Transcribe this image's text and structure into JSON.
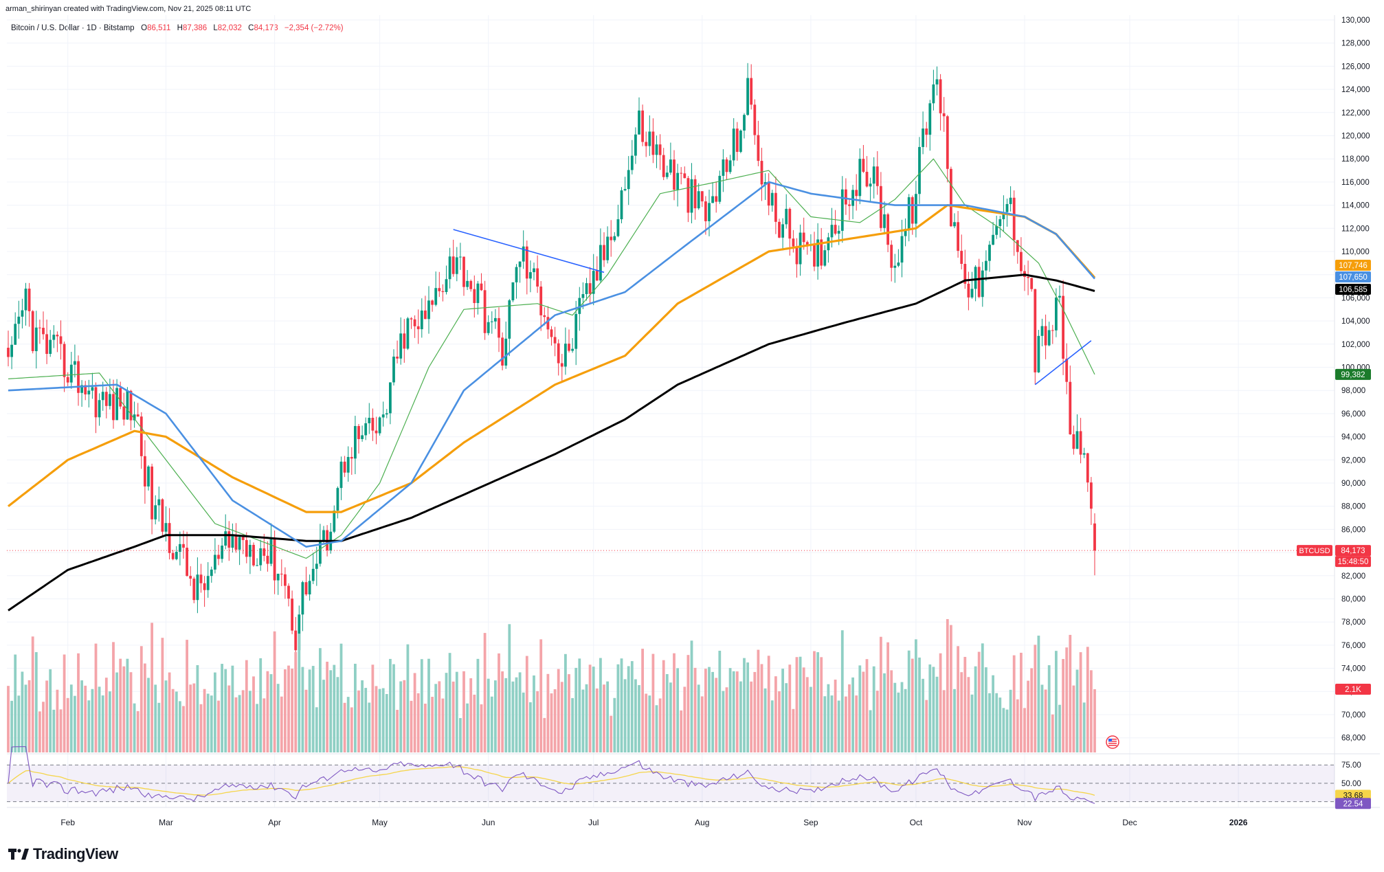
{
  "header": {
    "credit": "arman_shirinyan created with TradingView.com, Nov 21, 2025 08:11 UTC",
    "symbol_title": "Bitcoin / U.S. Dollar · 1D · Bitstamp",
    "ohlc": {
      "o_label": "O",
      "o": "86,511",
      "h_label": "H",
      "h": "87,386",
      "l_label": "L",
      "l": "82,032",
      "c_label": "C",
      "c": "84,173",
      "change": "−2,354 (−2.72%)"
    }
  },
  "brand": {
    "name": "TradingView"
  },
  "colors": {
    "up": "#089981",
    "down": "#f23645",
    "vol_up": "#8fcfc4",
    "vol_down": "#f4a4a9",
    "ema_blue": "#4a90e2",
    "ema_orange": "#f59e0b",
    "ema_black": "#000000",
    "ema_green": "#4caf50",
    "trendline": "#2962ff",
    "rsi": "#7e57c2",
    "rsi_ma": "#f5d54a"
  },
  "chart_data": {
    "type": "candlestick",
    "symbol": "BTCUSD",
    "x_tick_labels": [
      "Feb",
      "Mar",
      "Apr",
      "May",
      "Jun",
      "Jul",
      "Aug",
      "Sep",
      "Oct",
      "Nov",
      "Dec",
      "2026"
    ],
    "y_tick_labels": [
      "130,000",
      "128,000",
      "126,000",
      "124,000",
      "122,000",
      "120,000",
      "118,000",
      "116,000",
      "114,000",
      "112,000",
      "110,000",
      "108,000",
      "106,000",
      "104,000",
      "102,000",
      "100,000",
      "98,000",
      "96,000",
      "94,000",
      "92,000",
      "90,000",
      "88,000",
      "86,000",
      "84,000",
      "82,000",
      "80,000",
      "78,000",
      "76,000",
      "74,000",
      "72,000",
      "70,000",
      "68,000"
    ],
    "y_range": [
      67000,
      130500
    ],
    "price_anchors": [
      [
        "2025-01-15",
        99500
      ],
      [
        "2025-01-20",
        106000
      ],
      [
        "2025-01-22",
        103000
      ],
      [
        "2025-02-01",
        100000
      ],
      [
        "2025-02-10",
        97000
      ],
      [
        "2025-02-20",
        96500
      ],
      [
        "2025-02-25",
        88000
      ],
      [
        "2025-03-03",
        85000
      ],
      [
        "2025-03-10",
        80500
      ],
      [
        "2025-03-20",
        85000
      ],
      [
        "2025-03-28",
        84500
      ],
      [
        "2025-04-03",
        82500
      ],
      [
        "2025-04-07",
        77000
      ],
      [
        "2025-04-09",
        80500
      ],
      [
        "2025-04-15",
        84500
      ],
      [
        "2025-04-22",
        93500
      ],
      [
        "2025-05-01",
        94500
      ],
      [
        "2025-05-08",
        103000
      ],
      [
        "2025-05-14",
        104000
      ],
      [
        "2025-05-21",
        109500
      ],
      [
        "2025-05-25",
        108500
      ],
      [
        "2025-06-05",
        101500
      ],
      [
        "2025-06-10",
        110000
      ],
      [
        "2025-06-18",
        104500
      ],
      [
        "2025-06-22",
        100000
      ],
      [
        "2025-06-30",
        107000
      ],
      [
        "2025-07-03",
        109000
      ],
      [
        "2025-07-10",
        116000
      ],
      [
        "2025-07-14",
        121000
      ],
      [
        "2025-07-20",
        118000
      ],
      [
        "2025-08-02",
        113000
      ],
      [
        "2025-08-10",
        119000
      ],
      [
        "2025-08-14",
        123500
      ],
      [
        "2025-08-20",
        114000
      ],
      [
        "2025-09-01",
        109000
      ],
      [
        "2025-09-05",
        111000
      ],
      [
        "2025-09-12",
        115500
      ],
      [
        "2025-09-18",
        117000
      ],
      [
        "2025-09-25",
        109000
      ],
      [
        "2025-09-30",
        114000
      ],
      [
        "2025-10-06",
        124500
      ],
      [
        "2025-10-09",
        122500
      ],
      [
        "2025-10-11",
        113000
      ],
      [
        "2025-10-17",
        106500
      ],
      [
        "2025-10-21",
        108500
      ],
      [
        "2025-10-27",
        114500
      ],
      [
        "2025-11-03",
        106500
      ],
      [
        "2025-11-04",
        101000
      ],
      [
        "2025-11-07",
        103000
      ],
      [
        "2025-11-11",
        105000
      ],
      [
        "2025-11-14",
        94500
      ],
      [
        "2025-11-17",
        92000
      ],
      [
        "2025-11-19",
        91500
      ],
      [
        "2025-11-20",
        86500
      ],
      [
        "2025-11-21",
        84173
      ]
    ],
    "last_candle": {
      "date": "2025-11-21",
      "open": 86511,
      "high": 87386,
      "low": 82032,
      "close": 84173
    },
    "moving_averages": {
      "ema_blue": {
        "last": 107650,
        "label": "107,650",
        "anchors": [
          [
            "2025-01-15",
            98000
          ],
          [
            "2025-02-15",
            98500
          ],
          [
            "2025-03-01",
            96000
          ],
          [
            "2025-03-20",
            88500
          ],
          [
            "2025-04-10",
            84500
          ],
          [
            "2025-04-20",
            85000
          ],
          [
            "2025-05-10",
            90000
          ],
          [
            "2025-05-25",
            98000
          ],
          [
            "2025-06-20",
            104500
          ],
          [
            "2025-07-10",
            106500
          ],
          [
            "2025-07-25",
            110000
          ],
          [
            "2025-08-20",
            116000
          ],
          [
            "2025-09-01",
            115000
          ],
          [
            "2025-09-25",
            114000
          ],
          [
            "2025-10-15",
            114000
          ],
          [
            "2025-11-01",
            113000
          ],
          [
            "2025-11-10",
            111500
          ],
          [
            "2025-11-21",
            107650
          ]
        ]
      },
      "ema_orange": {
        "last": 107746,
        "label": "107,746",
        "anchors": [
          [
            "2025-01-15",
            88000
          ],
          [
            "2025-02-01",
            92000
          ],
          [
            "2025-02-20",
            94500
          ],
          [
            "2025-03-01",
            94000
          ],
          [
            "2025-03-20",
            90500
          ],
          [
            "2025-04-10",
            87500
          ],
          [
            "2025-04-20",
            87500
          ],
          [
            "2025-05-10",
            90000
          ],
          [
            "2025-05-25",
            93500
          ],
          [
            "2025-06-20",
            98500
          ],
          [
            "2025-07-10",
            101000
          ],
          [
            "2025-07-25",
            105500
          ],
          [
            "2025-08-20",
            110000
          ],
          [
            "2025-09-10",
            111000
          ],
          [
            "2025-10-01",
            112000
          ],
          [
            "2025-10-10",
            114000
          ],
          [
            "2025-11-01",
            113000
          ],
          [
            "2025-11-10",
            111500
          ],
          [
            "2025-11-21",
            107746
          ]
        ]
      },
      "ema_black": {
        "last": 106585,
        "label": "106,585",
        "anchors": [
          [
            "2025-01-15",
            79000
          ],
          [
            "2025-02-01",
            82500
          ],
          [
            "2025-02-20",
            84500
          ],
          [
            "2025-03-01",
            85500
          ],
          [
            "2025-03-20",
            85500
          ],
          [
            "2025-04-10",
            85000
          ],
          [
            "2025-04-20",
            85000
          ],
          [
            "2025-05-10",
            87000
          ],
          [
            "2025-05-25",
            89000
          ],
          [
            "2025-06-20",
            92500
          ],
          [
            "2025-07-10",
            95500
          ],
          [
            "2025-07-25",
            98500
          ],
          [
            "2025-08-20",
            102000
          ],
          [
            "2025-09-10",
            103800
          ],
          [
            "2025-10-01",
            105500
          ],
          [
            "2025-10-15",
            107500
          ],
          [
            "2025-11-01",
            108000
          ],
          [
            "2025-11-10",
            107500
          ],
          [
            "2025-11-21",
            106585
          ]
        ]
      },
      "ema_green": {
        "last": 99382,
        "label": "99,382",
        "anchors": [
          [
            "2025-01-15",
            99000
          ],
          [
            "2025-02-10",
            99500
          ],
          [
            "2025-03-01",
            92000
          ],
          [
            "2025-03-15",
            86500
          ],
          [
            "2025-04-10",
            83500
          ],
          [
            "2025-04-20",
            85500
          ],
          [
            "2025-05-01",
            90000
          ],
          [
            "2025-05-15",
            100000
          ],
          [
            "2025-05-25",
            105000
          ],
          [
            "2025-06-15",
            105500
          ],
          [
            "2025-06-25",
            104500
          ],
          [
            "2025-07-05",
            108000
          ],
          [
            "2025-07-20",
            115000
          ],
          [
            "2025-08-05",
            116000
          ],
          [
            "2025-08-20",
            117000
          ],
          [
            "2025-09-01",
            113000
          ],
          [
            "2025-09-15",
            112500
          ],
          [
            "2025-09-25",
            114500
          ],
          [
            "2025-10-06",
            118000
          ],
          [
            "2025-10-15",
            114000
          ],
          [
            "2025-10-25",
            112000
          ],
          [
            "2025-11-05",
            109000
          ],
          [
            "2025-11-12",
            105000
          ],
          [
            "2025-11-21",
            99382
          ]
        ]
      }
    },
    "trendlines": [
      {
        "from": [
          "2025-05-22",
          111900
        ],
        "to": [
          "2025-07-04",
          108200
        ]
      },
      {
        "from": [
          "2025-11-04",
          98500
        ],
        "to": [
          "2025-11-20",
          102300
        ]
      }
    ],
    "price_labels": [
      {
        "text": "107,746",
        "value": 107746,
        "color": "#f59e0b"
      },
      {
        "text": "107,650",
        "value": 107650,
        "color": "#4a90e2"
      },
      {
        "text": "106,585",
        "value": 106585,
        "color": "#000000"
      },
      {
        "text": "99,382",
        "value": 99382,
        "color": "#2e7d32"
      },
      {
        "text": "84,173",
        "value": 84173,
        "color": "#f23645"
      }
    ],
    "symbol_tag": "BTCUSD",
    "countdown": "15:48:50",
    "volume": {
      "label": "2.1K",
      "last": 2100
    },
    "rsi": {
      "levels": [
        75.0,
        50.0
      ],
      "tick_labels": [
        "75.00",
        "50.00"
      ],
      "last_rsi": 22.54,
      "last_rsi_label": "22.54",
      "last_ma": 33.68,
      "last_ma_label": "33.68"
    }
  }
}
